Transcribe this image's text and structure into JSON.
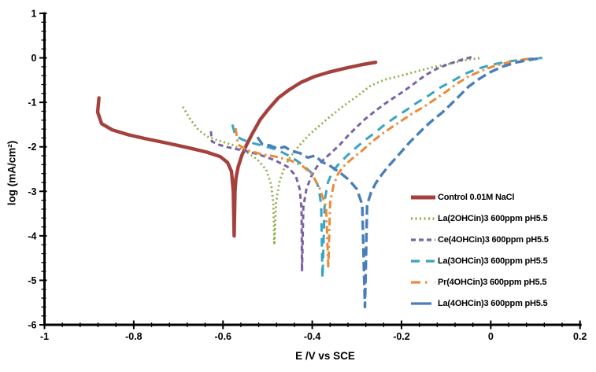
{
  "chart_data": {
    "type": "line",
    "title": "",
    "xlabel": "E /V vs SCE",
    "ylabel": "log (mA/cm²)",
    "xlim": [
      -1,
      0.2
    ],
    "ylim": [
      -6,
      1
    ],
    "grid": false,
    "background": "#ffffff",
    "axis_color": "#000000",
    "legend_position": "right-middle",
    "x_major_ticks": [
      -1,
      -0.8,
      -0.6,
      -0.4,
      -0.2,
      0,
      0.2
    ],
    "x_tick_labels": [
      "-1",
      "-0.8",
      "-0.6",
      "-0.4",
      "-0.2",
      "0",
      "0.2"
    ],
    "x_minor_step": 0.04,
    "y_major_ticks": [
      1,
      0,
      -1,
      -2,
      -3,
      -4,
      -5,
      -6
    ],
    "y_tick_labels": [
      "1",
      "0",
      "-1",
      "-2",
      "-3",
      "-4",
      "-5",
      "-6"
    ],
    "y_minor_step": 0.2,
    "series": [
      {
        "name": "Control 0.01M NaCl",
        "color": "#A4413D",
        "style": "solid",
        "dash": "",
        "legend_dash": "",
        "width": 4.4,
        "ecorr": -0.575,
        "points": [
          [
            -0.878,
            -0.9
          ],
          [
            -0.881,
            -1.22
          ],
          [
            -0.872,
            -1.48
          ],
          [
            -0.848,
            -1.62
          ],
          [
            -0.812,
            -1.73
          ],
          [
            -0.772,
            -1.82
          ],
          [
            -0.728,
            -1.91
          ],
          [
            -0.678,
            -2.02
          ],
          [
            -0.636,
            -2.12
          ],
          [
            -0.606,
            -2.22
          ],
          [
            -0.59,
            -2.35
          ],
          [
            -0.581,
            -2.55
          ],
          [
            -0.577,
            -3.0
          ],
          [
            -0.575,
            -4.0
          ],
          [
            -0.573,
            -3.0
          ],
          [
            -0.571,
            -2.7
          ],
          [
            -0.566,
            -2.45
          ],
          [
            -0.558,
            -2.2
          ],
          [
            -0.547,
            -1.95
          ],
          [
            -0.534,
            -1.7
          ],
          [
            -0.516,
            -1.38
          ],
          [
            -0.498,
            -1.15
          ],
          [
            -0.476,
            -0.9
          ],
          [
            -0.452,
            -0.72
          ],
          [
            -0.425,
            -0.55
          ],
          [
            -0.395,
            -0.42
          ],
          [
            -0.362,
            -0.32
          ],
          [
            -0.325,
            -0.23
          ],
          [
            -0.292,
            -0.16
          ],
          [
            -0.258,
            -0.1
          ]
        ]
      },
      {
        "name": "La(2OHCin)3 600ppm pH5.5",
        "color": "#8EAF4B",
        "style": "dotted",
        "dash": "2 3.5",
        "legend_dash": "2 3.5",
        "width": 2.8,
        "ecorr": -0.485,
        "points": [
          [
            -0.69,
            -1.1
          ],
          [
            -0.672,
            -1.4
          ],
          [
            -0.655,
            -1.62
          ],
          [
            -0.635,
            -1.77
          ],
          [
            -0.61,
            -1.86
          ],
          [
            -0.58,
            -1.95
          ],
          [
            -0.55,
            -2.1
          ],
          [
            -0.523,
            -2.28
          ],
          [
            -0.503,
            -2.52
          ],
          [
            -0.492,
            -2.85
          ],
          [
            -0.487,
            -3.3
          ],
          [
            -0.485,
            -4.2
          ],
          [
            -0.481,
            -3.25
          ],
          [
            -0.474,
            -2.8
          ],
          [
            -0.463,
            -2.48
          ],
          [
            -0.449,
            -2.22
          ],
          [
            -0.43,
            -1.98
          ],
          [
            -0.41,
            -1.76
          ],
          [
            -0.388,
            -1.56
          ],
          [
            -0.36,
            -1.32
          ],
          [
            -0.33,
            -1.08
          ],
          [
            -0.298,
            -0.85
          ],
          [
            -0.27,
            -0.63
          ],
          [
            -0.238,
            -0.49
          ],
          [
            -0.205,
            -0.41
          ],
          [
            -0.168,
            -0.31
          ],
          [
            -0.13,
            -0.21
          ],
          [
            -0.09,
            -0.13
          ],
          [
            -0.052,
            -0.04
          ],
          [
            -0.02,
            0.0
          ]
        ]
      },
      {
        "name": "Ce(4OHCin)3 600ppm pH5.5",
        "color": "#7A63A4",
        "style": "dashed",
        "dash": "6.5 4.5",
        "legend_dash": "6 4",
        "width": 3,
        "ecorr": -0.423,
        "points": [
          [
            -0.627,
            -1.65
          ],
          [
            -0.625,
            -1.88
          ],
          [
            -0.61,
            -1.95
          ],
          [
            -0.588,
            -2.01
          ],
          [
            -0.556,
            -2.08
          ],
          [
            -0.52,
            -2.17
          ],
          [
            -0.484,
            -2.3
          ],
          [
            -0.455,
            -2.45
          ],
          [
            -0.437,
            -2.65
          ],
          [
            -0.428,
            -2.95
          ],
          [
            -0.424,
            -3.4
          ],
          [
            -0.423,
            -4.8
          ],
          [
            -0.42,
            -3.35
          ],
          [
            -0.413,
            -2.95
          ],
          [
            -0.403,
            -2.68
          ],
          [
            -0.39,
            -2.45
          ],
          [
            -0.374,
            -2.28
          ],
          [
            -0.356,
            -2.12
          ],
          [
            -0.338,
            -1.95
          ],
          [
            -0.32,
            -1.75
          ],
          [
            -0.3,
            -1.55
          ],
          [
            -0.282,
            -1.38
          ],
          [
            -0.262,
            -1.22
          ],
          [
            -0.24,
            -1.05
          ],
          [
            -0.218,
            -0.9
          ],
          [
            -0.195,
            -0.75
          ],
          [
            -0.172,
            -0.58
          ],
          [
            -0.148,
            -0.4
          ],
          [
            -0.122,
            -0.25
          ],
          [
            -0.095,
            -0.14
          ],
          [
            -0.068,
            -0.05
          ],
          [
            -0.042,
            0.02
          ]
        ]
      },
      {
        "name": "La(3OHCin)3 600ppm pH5.5",
        "color": "#38A5C2",
        "style": "long-dash",
        "dash": "11 8",
        "legend_dash": "11 8",
        "width": 3,
        "ecorr": -0.377,
        "points": [
          [
            -0.579,
            -1.5
          ],
          [
            -0.572,
            -1.75
          ],
          [
            -0.556,
            -1.84
          ],
          [
            -0.532,
            -1.92
          ],
          [
            -0.505,
            -1.99
          ],
          [
            -0.476,
            -2.08
          ],
          [
            -0.448,
            -2.22
          ],
          [
            -0.422,
            -2.4
          ],
          [
            -0.4,
            -2.6
          ],
          [
            -0.386,
            -2.9
          ],
          [
            -0.38,
            -3.3
          ],
          [
            -0.377,
            -4.95
          ],
          [
            -0.372,
            -3.2
          ],
          [
            -0.365,
            -2.8
          ],
          [
            -0.354,
            -2.55
          ],
          [
            -0.34,
            -2.38
          ],
          [
            -0.322,
            -2.2
          ],
          [
            -0.302,
            -2.02
          ],
          [
            -0.282,
            -1.85
          ],
          [
            -0.262,
            -1.7
          ],
          [
            -0.24,
            -1.52
          ],
          [
            -0.216,
            -1.35
          ],
          [
            -0.19,
            -1.18
          ],
          [
            -0.164,
            -1.0
          ],
          [
            -0.138,
            -0.84
          ],
          [
            -0.112,
            -0.66
          ],
          [
            -0.086,
            -0.52
          ],
          [
            -0.058,
            -0.36
          ],
          [
            -0.028,
            -0.24
          ],
          [
            0.004,
            -0.15
          ],
          [
            0.04,
            -0.08
          ],
          [
            0.078,
            -0.03
          ],
          [
            0.115,
            0.0
          ]
        ]
      },
      {
        "name": "Pr(4OHCin)3 600ppm pH5.5",
        "color": "#EA8B3C",
        "style": "dash-dot",
        "dash": "10 4.5 2.5 4.5",
        "legend_dash": "12 6 2.5 10",
        "width": 3,
        "ecorr": -0.364,
        "points": [
          [
            -0.572,
            -1.58
          ],
          [
            -0.566,
            -1.95
          ],
          [
            -0.545,
            -2.08
          ],
          [
            -0.515,
            -2.16
          ],
          [
            -0.482,
            -2.22
          ],
          [
            -0.45,
            -2.3
          ],
          [
            -0.422,
            -2.43
          ],
          [
            -0.4,
            -2.62
          ],
          [
            -0.384,
            -2.92
          ],
          [
            -0.369,
            -3.35
          ],
          [
            -0.364,
            -4.72
          ],
          [
            -0.36,
            -3.25
          ],
          [
            -0.352,
            -2.85
          ],
          [
            -0.342,
            -2.6
          ],
          [
            -0.328,
            -2.42
          ],
          [
            -0.31,
            -2.26
          ],
          [
            -0.29,
            -2.1
          ],
          [
            -0.268,
            -1.9
          ],
          [
            -0.245,
            -1.72
          ],
          [
            -0.222,
            -1.56
          ],
          [
            -0.198,
            -1.4
          ],
          [
            -0.174,
            -1.24
          ],
          [
            -0.15,
            -1.1
          ],
          [
            -0.125,
            -0.93
          ],
          [
            -0.1,
            -0.76
          ],
          [
            -0.076,
            -0.58
          ],
          [
            -0.052,
            -0.43
          ],
          [
            -0.026,
            -0.31
          ],
          [
            0.006,
            -0.19
          ],
          [
            0.04,
            -0.1
          ],
          [
            0.072,
            -0.04
          ],
          [
            0.1,
            -0.01
          ]
        ]
      },
      {
        "name": "La(4OHCin)3 600ppm pH5.5",
        "color": "#4A7EBA",
        "style": "long-dash",
        "dash": "12 5.5",
        "legend_dash": "26 5",
        "width": 3.4,
        "ecorr": -0.282,
        "points": [
          [
            -0.523,
            -1.78
          ],
          [
            -0.512,
            -1.94
          ],
          [
            -0.495,
            -1.97
          ],
          [
            -0.478,
            -2.04
          ],
          [
            -0.462,
            -2.0
          ],
          [
            -0.445,
            -2.1
          ],
          [
            -0.428,
            -2.14
          ],
          [
            -0.41,
            -2.24
          ],
          [
            -0.394,
            -2.2
          ],
          [
            -0.378,
            -2.34
          ],
          [
            -0.358,
            -2.44
          ],
          [
            -0.338,
            -2.58
          ],
          [
            -0.318,
            -2.74
          ],
          [
            -0.3,
            -2.95
          ],
          [
            -0.288,
            -3.3
          ],
          [
            -0.282,
            -5.6
          ],
          [
            -0.277,
            -3.3
          ],
          [
            -0.268,
            -3.02
          ],
          [
            -0.258,
            -2.82
          ],
          [
            -0.244,
            -2.62
          ],
          [
            -0.228,
            -2.42
          ],
          [
            -0.21,
            -2.22
          ],
          [
            -0.195,
            -2.05
          ],
          [
            -0.18,
            -1.88
          ],
          [
            -0.164,
            -1.72
          ],
          [
            -0.148,
            -1.56
          ],
          [
            -0.13,
            -1.4
          ],
          [
            -0.11,
            -1.24
          ],
          [
            -0.09,
            -1.05
          ],
          [
            -0.07,
            -0.85
          ],
          [
            -0.05,
            -0.65
          ],
          [
            -0.03,
            -0.5
          ],
          [
            -0.005,
            -0.34
          ],
          [
            0.025,
            -0.2
          ],
          [
            0.058,
            -0.1
          ],
          [
            0.09,
            -0.04
          ],
          [
            0.116,
            0.0
          ]
        ]
      }
    ]
  }
}
